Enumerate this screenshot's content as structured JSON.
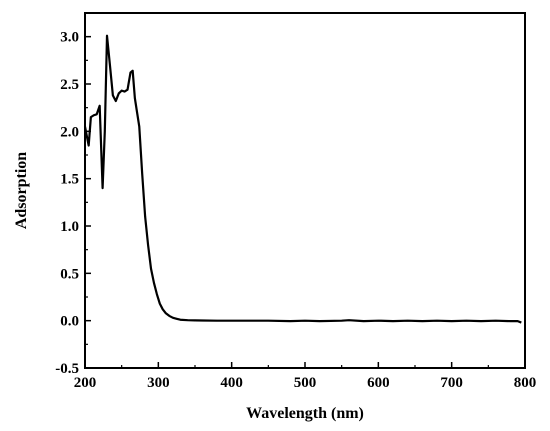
{
  "chart_data": {
    "type": "line",
    "title": "",
    "xlabel": "Wavelength (nm)",
    "ylabel": "Adsorption",
    "xlim": [
      200,
      800
    ],
    "ylim": [
      -0.5,
      3.25
    ],
    "xticks": [
      200,
      300,
      400,
      500,
      600,
      700,
      800
    ],
    "xtick_labels": [
      "200",
      "300",
      "400",
      "500",
      "600",
      "700",
      "800"
    ],
    "yticks": [
      -0.5,
      0.0,
      0.5,
      1.0,
      1.5,
      2.0,
      2.5,
      3.0
    ],
    "ytick_labels": [
      "-0.5",
      "0.0",
      "0.5",
      "1.0",
      "1.5",
      "2.0",
      "2.5",
      "3.0"
    ],
    "grid": false,
    "legend": "none",
    "colors": {
      "line": "#000000",
      "axes": "#000000"
    },
    "series": [
      {
        "x": [
          200,
          205,
          208,
          212,
          216,
          220,
          224,
          227,
          230,
          234,
          238,
          242,
          246,
          250,
          254,
          258,
          262,
          265,
          268,
          271,
          274,
          278,
          282,
          286,
          290,
          294,
          298,
          302,
          306,
          310,
          315,
          320,
          325,
          330,
          340,
          350,
          360,
          380,
          400,
          420,
          450,
          480,
          500,
          520,
          550,
          560,
          580,
          600,
          620,
          640,
          660,
          680,
          700,
          720,
          740,
          760,
          780,
          790,
          795
        ],
        "y": [
          2.05,
          1.85,
          2.15,
          2.17,
          2.18,
          2.27,
          1.4,
          2.0,
          3.01,
          2.7,
          2.38,
          2.32,
          2.4,
          2.43,
          2.42,
          2.44,
          2.62,
          2.64,
          2.35,
          2.2,
          2.05,
          1.55,
          1.1,
          0.8,
          0.55,
          0.4,
          0.28,
          0.18,
          0.12,
          0.08,
          0.05,
          0.03,
          0.02,
          0.01,
          0.005,
          0.003,
          0.002,
          0.0,
          0.0,
          0.0,
          0.0,
          -0.005,
          0.0,
          -0.005,
          0.0,
          0.005,
          -0.005,
          0.0,
          -0.005,
          0.0,
          -0.005,
          0.0,
          -0.005,
          0.0,
          -0.005,
          0.0,
          -0.005,
          -0.005,
          -0.02
        ]
      }
    ]
  }
}
